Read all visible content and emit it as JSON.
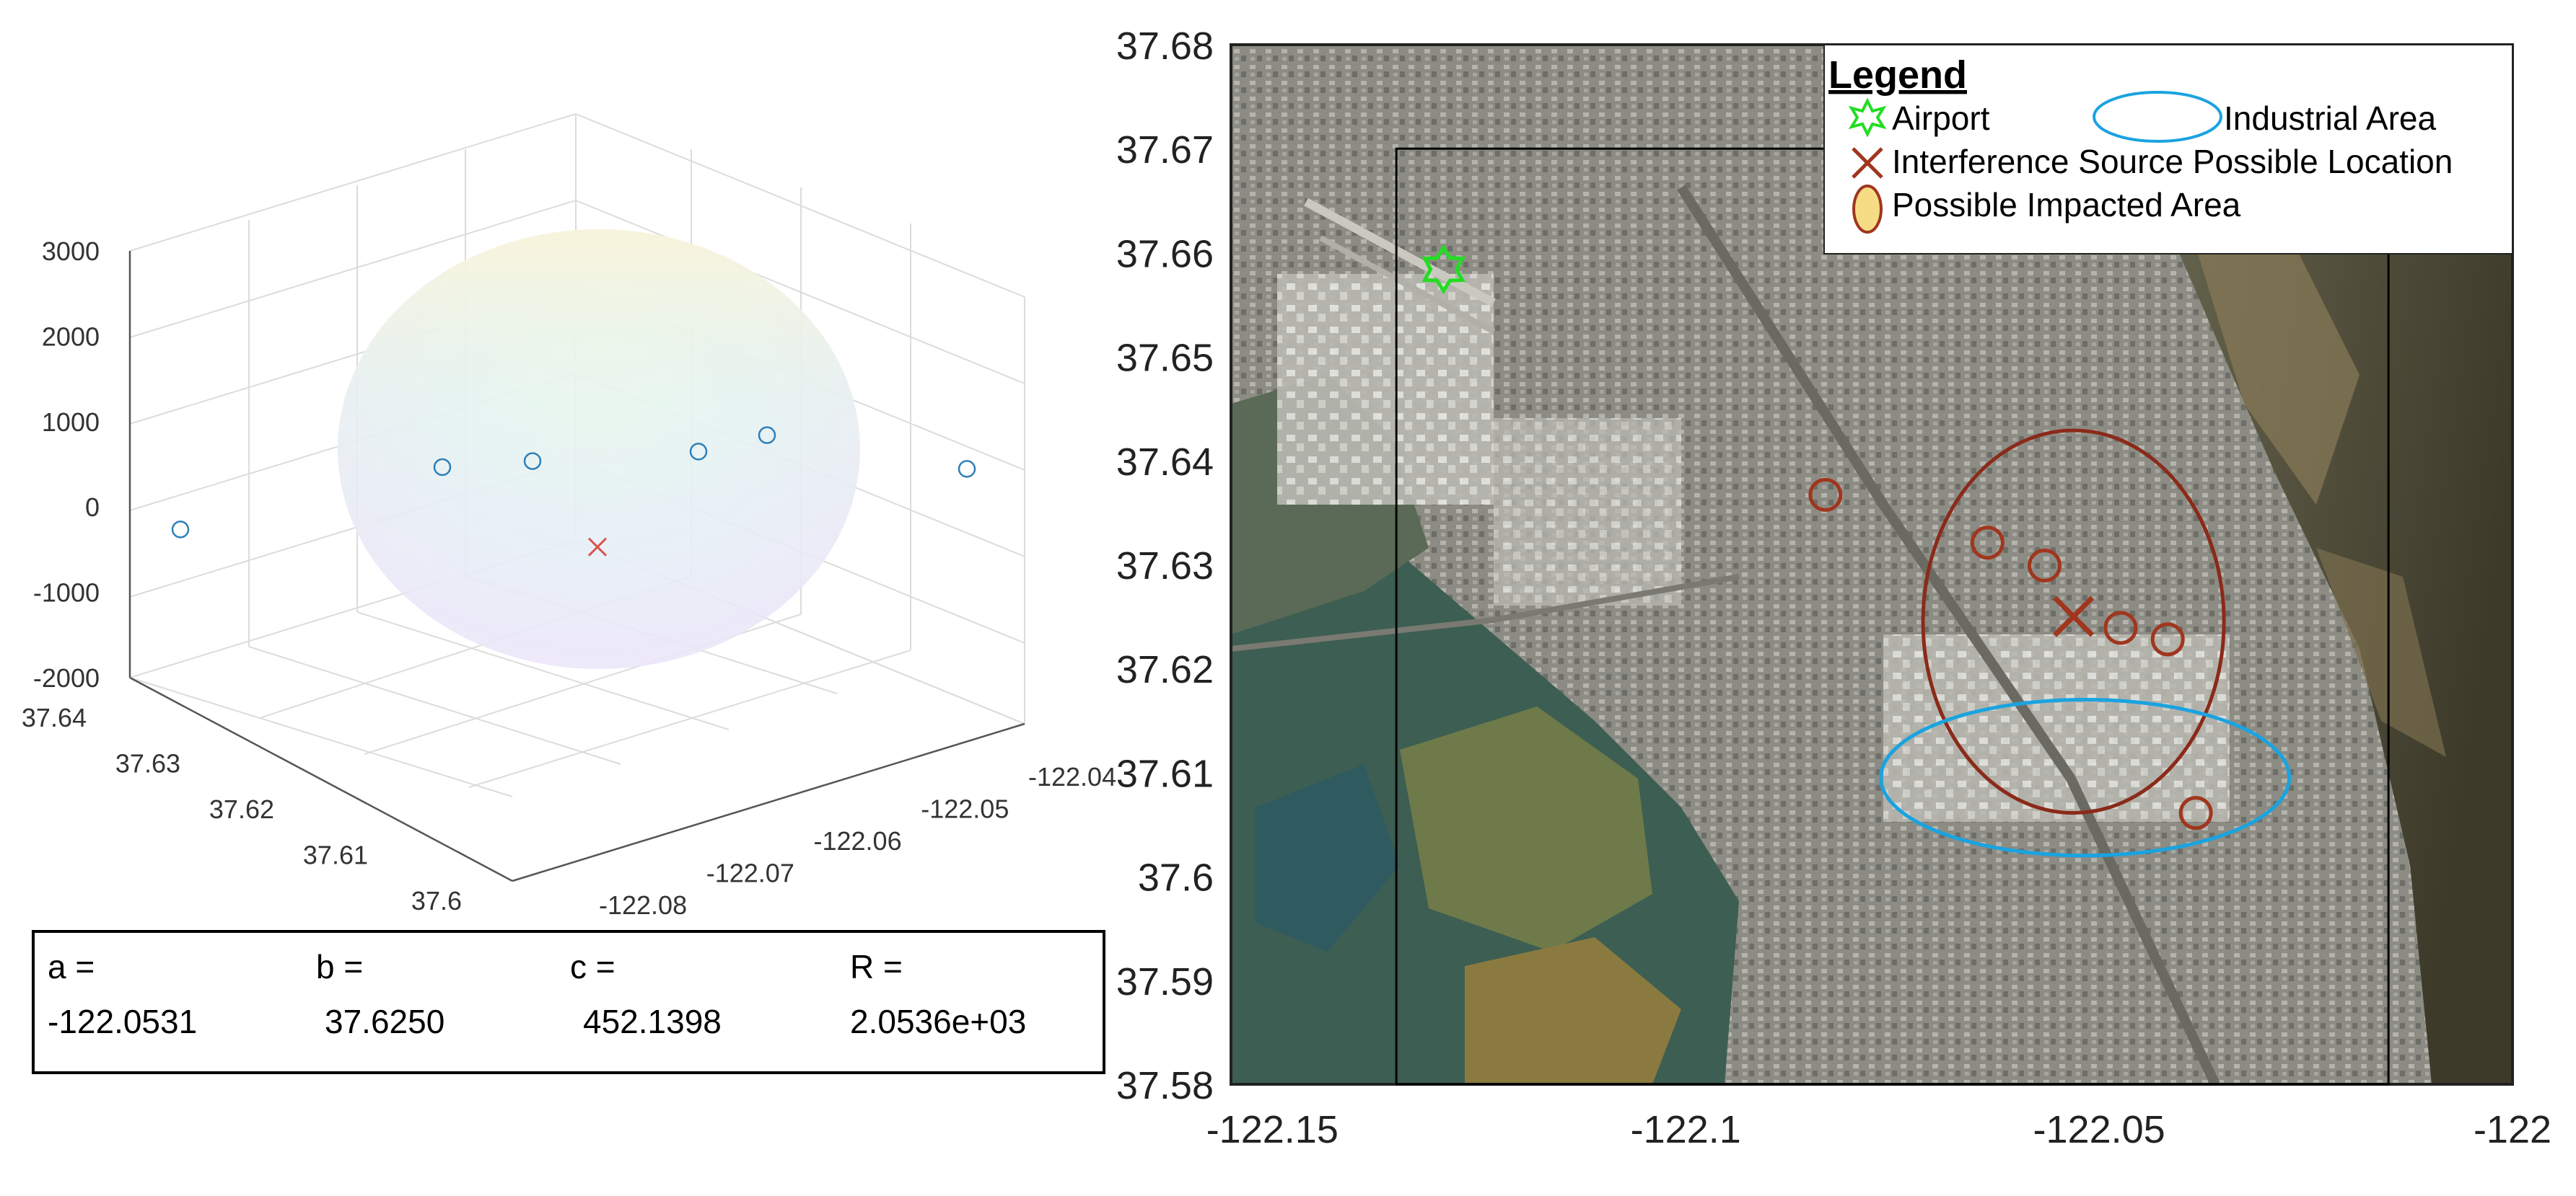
{
  "chart_data": [
    {
      "type": "scatter",
      "title": "",
      "axes": {
        "x_ticks": [
          "-122.08",
          "-122.07",
          "-122.06",
          "-122.05",
          "-122.04"
        ],
        "y_ticks": [
          "37.6",
          "37.61",
          "37.62",
          "37.63",
          "37.64"
        ],
        "z_ticks": [
          "3000",
          "2000",
          "1000",
          "0",
          "-1000",
          "-2000"
        ],
        "zlim": [
          -2000,
          3000
        ],
        "grid": true
      },
      "series": [
        {
          "marker": "circle",
          "color": "#2e7fb8",
          "points": [
            {
              "z": -220
            },
            {
              "z": 500
            },
            {
              "z": 570
            },
            {
              "z": 680
            },
            {
              "z": 870
            },
            {
              "z": 480
            }
          ]
        },
        {
          "marker": "x",
          "color": "#d9534f",
          "points": [
            {
              "x": -122.0531,
              "y": 37.625,
              "z": 452.1398
            }
          ]
        }
      ],
      "sphere_radius": 2053.6,
      "params": [
        {
          "label": "a =",
          "value": "-122.0531"
        },
        {
          "label": "b =",
          "value": "37.6250"
        },
        {
          "label": "c =",
          "value": "452.1398"
        },
        {
          "label": "R =",
          "value": "2.0536e+03"
        }
      ]
    },
    {
      "type": "scatter",
      "title": "",
      "xlim": [
        -122.155,
        -122.0
      ],
      "ylim": [
        37.58,
        37.68
      ],
      "x_ticks": [
        -122.15,
        -122.1,
        -122.05,
        -122.0
      ],
      "x_tick_labels": [
        "-122.15",
        "-122.1",
        "-122.05",
        "-122"
      ],
      "y_ticks": [
        37.58,
        37.59,
        37.6,
        37.61,
        37.62,
        37.63,
        37.64,
        37.65,
        37.66,
        37.67,
        37.68
      ],
      "y_tick_labels": [
        "37.58",
        "37.59",
        "37.6",
        "37.61",
        "37.62",
        "37.63",
        "37.64",
        "37.65",
        "37.66",
        "37.67",
        "37.68"
      ],
      "background": "satellite-map",
      "inner_box": {
        "x_range": [
          -122.135,
          -122.015
        ],
        "y_range": [
          37.58,
          37.67
        ]
      },
      "airport": {
        "x": -122.1293,
        "y": 37.6584,
        "color": "#22dd22"
      },
      "source": {
        "x": -122.0531,
        "y": 37.625,
        "color": "#a0361e"
      },
      "impacted_areas": [
        {
          "x": -122.0831,
          "y": 37.6367
        },
        {
          "x": -122.0635,
          "y": 37.6321
        },
        {
          "x": -122.0566,
          "y": 37.6299
        },
        {
          "x": -122.0474,
          "y": 37.6239
        },
        {
          "x": -122.0417,
          "y": 37.6228
        },
        {
          "x": -122.0383,
          "y": 37.6061
        }
      ],
      "ellipses": [
        {
          "name": "interference-area",
          "cx": -122.0531,
          "cy": 37.6245,
          "rx": 0.0182,
          "ry": 0.0184,
          "color": "#8b2a1a"
        },
        {
          "name": "industrial-area",
          "cx": -122.0517,
          "cy": 37.6095,
          "rx": 0.0247,
          "ry": 0.0075,
          "color": "#1aa3e0"
        }
      ],
      "legend": {
        "title": "Legend",
        "position": "top-right",
        "items": [
          {
            "label": "Airport",
            "color": "#22dd22",
            "icon": "star-icon"
          },
          {
            "label": "Industrial Area",
            "color": "#1aa3e0",
            "icon": "ellipse-icon"
          },
          {
            "label": "Interference Source Possible Location",
            "color": "#a0361e",
            "icon": "x-marker-icon"
          },
          {
            "label": "Possible Impacted Area",
            "color": "#a0361e",
            "icon": "ellipse-fill-icon"
          }
        ]
      }
    }
  ]
}
